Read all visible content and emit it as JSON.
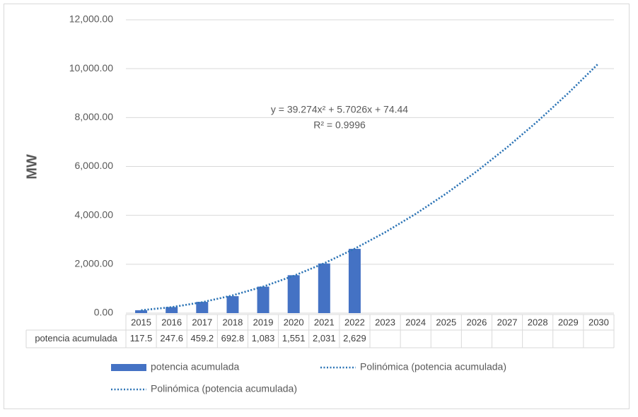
{
  "chart_data": {
    "type": "bar",
    "y_axis_label": "MW",
    "categories": [
      "2015",
      "2016",
      "2017",
      "2018",
      "2019",
      "2020",
      "2021",
      "2022",
      "2023",
      "2024",
      "2025",
      "2026",
      "2027",
      "2028",
      "2029",
      "2030"
    ],
    "series": [
      {
        "name": "potencia acumulada",
        "type": "bar",
        "color": "#4472c4",
        "values": [
          117.5,
          247.6,
          459.2,
          692.8,
          1083,
          1551,
          2031,
          2629,
          null,
          null,
          null,
          null,
          null,
          null,
          null,
          null
        ],
        "value_labels": [
          "117.5",
          "247.6",
          "459.2",
          "692.8",
          "1,083",
          "1,551",
          "2,031",
          "2,629",
          null,
          null,
          null,
          null,
          null,
          null,
          null,
          null
        ]
      },
      {
        "name": "Polinómica (potencia acumulada)",
        "type": "trendline",
        "color": "#2e75b6",
        "values": [
          119,
          243,
          445,
          726,
          1085,
          1523,
          2039,
          2634,
          3307,
          4059,
          4889,
          5798,
          6786,
          7852,
          8997,
          10220
        ]
      },
      {
        "name": "Polinómica (potencia acumulada)",
        "type": "trendline",
        "color": "#2e75b6",
        "values": [
          119,
          243,
          445,
          726,
          1085,
          1523,
          2039,
          2634,
          3307,
          4059,
          4889,
          5798,
          6786,
          7852,
          8997,
          10220
        ]
      }
    ],
    "annotations": [
      "y = 39.274x² + 5.7026x + 74.44",
      "R² = 0.9996"
    ],
    "ylim": [
      0,
      12000
    ],
    "yticks": [
      {
        "value": 0,
        "label": "0.00"
      },
      {
        "value": 2000,
        "label": "2,000.00"
      },
      {
        "value": 4000,
        "label": "4,000.00"
      },
      {
        "value": 6000,
        "label": "6,000.00"
      },
      {
        "value": 8000,
        "label": "8,000.00"
      },
      {
        "value": 10000,
        "label": "10,000.00"
      },
      {
        "value": 12000,
        "label": "12,000.00"
      }
    ],
    "grid": true
  }
}
